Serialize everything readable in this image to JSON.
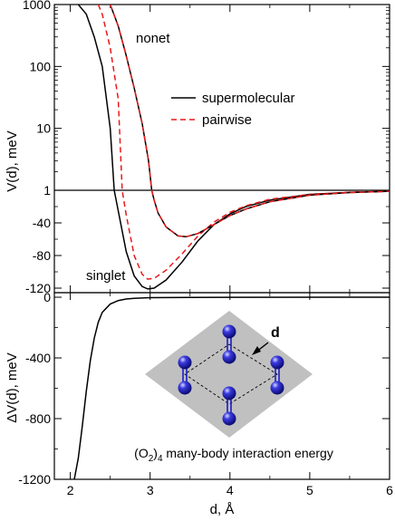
{
  "chart_data": [
    {
      "type": "line",
      "panel": "top",
      "ylabel": "V(d), meV",
      "xlim": [
        1.8,
        6.0
      ],
      "y_scale": "piecewise: log (1 to 1000, decades) above 1, linear (-130 to 0) below 1",
      "y_ticks": [
        "1000",
        "100",
        "10",
        "1",
        "-40",
        "-80",
        "-120"
      ],
      "grid": false,
      "reference_line_at": 1,
      "legend": {
        "placement": "center-right",
        "entries": [
          {
            "label": "supermolecular",
            "style": "solid",
            "color": "#000000"
          },
          {
            "label": "pairwise",
            "style": "dashed",
            "color": "#e8191a"
          }
        ]
      },
      "annotations": [
        "nonet",
        "singlet"
      ],
      "series": [
        {
          "name": "supermolecular",
          "state": "singlet",
          "color": "#000000",
          "dash": "solid",
          "points": [
            [
              2.1,
              1000
            ],
            [
              2.2,
              700
            ],
            [
              2.3,
              300
            ],
            [
              2.4,
              100
            ],
            [
              2.5,
              10
            ],
            [
              2.55,
              1
            ],
            [
              2.6,
              -25
            ],
            [
              2.7,
              -75
            ],
            [
              2.8,
              -105
            ],
            [
              2.9,
              -118
            ],
            [
              2.97,
              -121
            ],
            [
              3.05,
              -120
            ],
            [
              3.2,
              -110
            ],
            [
              3.4,
              -88
            ],
            [
              3.6,
              -62
            ],
            [
              3.8,
              -42
            ],
            [
              4.0,
              -29
            ],
            [
              4.2,
              -20
            ],
            [
              4.5,
              -12
            ],
            [
              5.0,
              -5
            ],
            [
              5.5,
              -2.5
            ],
            [
              6.0,
              -1.2
            ]
          ]
        },
        {
          "name": "pairwise",
          "state": "singlet",
          "color": "#e8191a",
          "dash": "dashed",
          "points": [
            [
              2.35,
              1000
            ],
            [
              2.4,
              700
            ],
            [
              2.5,
              200
            ],
            [
              2.6,
              30
            ],
            [
              2.65,
              1
            ],
            [
              2.7,
              -30
            ],
            [
              2.8,
              -80
            ],
            [
              2.9,
              -103
            ],
            [
              2.97,
              -109
            ],
            [
              3.05,
              -108
            ],
            [
              3.2,
              -98
            ],
            [
              3.4,
              -78
            ],
            [
              3.6,
              -56
            ],
            [
              3.8,
              -39
            ],
            [
              4.0,
              -27
            ],
            [
              4.2,
              -19
            ],
            [
              4.5,
              -11
            ],
            [
              5.0,
              -5
            ],
            [
              5.5,
              -2.3
            ],
            [
              6.0,
              -1.1
            ]
          ]
        },
        {
          "name": "supermolecular",
          "state": "nonet",
          "color": "#000000",
          "dash": "solid",
          "points": [
            [
              2.5,
              1000
            ],
            [
              2.6,
              450
            ],
            [
              2.7,
              150
            ],
            [
              2.8,
              45
            ],
            [
              2.9,
              12
            ],
            [
              2.98,
              3
            ],
            [
              3.02,
              1
            ],
            [
              3.05,
              -12
            ],
            [
              3.1,
              -28
            ],
            [
              3.2,
              -45
            ],
            [
              3.35,
              -56
            ],
            [
              3.45,
              -57
            ],
            [
              3.6,
              -53
            ],
            [
              3.8,
              -42
            ],
            [
              4.0,
              -31
            ],
            [
              4.2,
              -23
            ],
            [
              4.5,
              -14
            ],
            [
              5.0,
              -6
            ],
            [
              5.5,
              -2.8
            ],
            [
              6.0,
              -1.3
            ]
          ]
        },
        {
          "name": "pairwise",
          "state": "nonet",
          "color": "#e8191a",
          "dash": "dashed",
          "points": [
            [
              2.5,
              1000
            ],
            [
              2.6,
              450
            ],
            [
              2.7,
              150
            ],
            [
              2.8,
              45
            ],
            [
              2.9,
              12
            ],
            [
              2.98,
              3
            ],
            [
              3.02,
              1
            ],
            [
              3.05,
              -12
            ],
            [
              3.1,
              -28
            ],
            [
              3.2,
              -45
            ],
            [
              3.35,
              -56
            ],
            [
              3.45,
              -57
            ],
            [
              3.6,
              -53
            ],
            [
              3.8,
              -42
            ],
            [
              4.0,
              -31
            ],
            [
              4.2,
              -23
            ],
            [
              4.5,
              -14
            ],
            [
              5.0,
              -6
            ],
            [
              5.5,
              -2.8
            ],
            [
              6.0,
              -1.3
            ]
          ]
        }
      ]
    },
    {
      "type": "line",
      "panel": "bottom",
      "xlabel": "d, Å",
      "ylabel": "ΔV(d), meV",
      "xlim": [
        1.8,
        6.0
      ],
      "ylim": [
        -1200,
        30
      ],
      "x_ticks": [
        "2",
        "3",
        "4",
        "5",
        "6"
      ],
      "y_ticks": [
        "0",
        "-400",
        "-800",
        "-1200"
      ],
      "grid": false,
      "annotations": [
        "(O2)4 many-body interaction energy",
        "d"
      ],
      "series": [
        {
          "color": "#000000",
          "dash": "solid",
          "points": [
            [
              2.05,
              -1200
            ],
            [
              2.1,
              -1060
            ],
            [
              2.15,
              -850
            ],
            [
              2.2,
              -620
            ],
            [
              2.25,
              -420
            ],
            [
              2.3,
              -270
            ],
            [
              2.35,
              -165
            ],
            [
              2.4,
              -100
            ],
            [
              2.5,
              -45
            ],
            [
              2.6,
              -22
            ],
            [
              2.7,
              -12
            ],
            [
              2.8,
              -7
            ],
            [
              3.0,
              -3
            ],
            [
              3.5,
              -1
            ],
            [
              4.0,
              -0.5
            ],
            [
              6.0,
              0
            ]
          ]
        }
      ]
    }
  ],
  "inset": {
    "title": "(O2)4 many-body interaction energy",
    "d_label": "d",
    "plane_color": "#c0c0c0",
    "atom_color": "#1c1cc8"
  },
  "labels": {
    "top_ylabel": "V(d), meV",
    "bottom_ylabel": "ΔV(d), meV",
    "xlabel": "d, Å",
    "nonet": "nonet",
    "singlet": "singlet",
    "legend_super": "supermolecular",
    "legend_pair": "pairwise",
    "inset_prefix": "(O",
    "inset_sub2": "2",
    "inset_mid": ")",
    "inset_sub4": "4",
    "inset_suffix": " many-body interaction energy",
    "d_label": "d"
  }
}
